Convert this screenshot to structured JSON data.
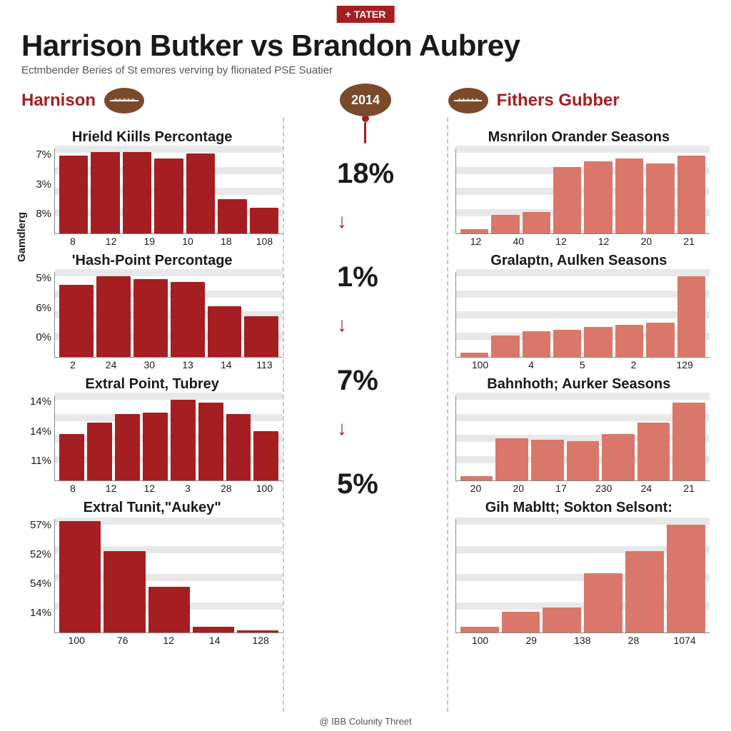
{
  "tag_label": "+ TATER",
  "main_title": "Harrison Butker vs Brandon Aubrey",
  "subtitle": "Ectmbender Beries of St emores verving by flionated PSE Suatier",
  "side_axis_label": "Gamdlerg",
  "footer": "@ IBB Colunity Threet",
  "colors": {
    "brand_red": "#a51e22",
    "left_bar": "#a51e22",
    "right_bar": "#d9776a",
    "grid": "#e8e8e8",
    "text": "#1a1a1a",
    "football": "#7a4a2b"
  },
  "left_player": "Harnison",
  "right_player": "Fithers Gubber",
  "center_year": "2014",
  "center_stats": [
    "18%",
    "1%",
    "7%",
    "5%"
  ],
  "left_charts": [
    {
      "title": "Hrield Kiills Percontage",
      "y_labels": [
        "7%",
        "3%",
        "8%"
      ],
      "x_labels": [
        "8",
        "12",
        "19",
        "10",
        "18",
        "108"
      ],
      "values": [
        92,
        96,
        96,
        88,
        94,
        40,
        30
      ],
      "bar_color": "#a51e22",
      "height_class": ""
    },
    {
      "title": "'Hash-Point Percontage",
      "y_labels": [
        "5%",
        "6%",
        "0%"
      ],
      "x_labels": [
        "2",
        "24",
        "30",
        "13",
        "14",
        "113"
      ],
      "values": [
        85,
        95,
        92,
        88,
        60,
        48
      ],
      "bar_color": "#a51e22",
      "height_class": ""
    },
    {
      "title": "Extral Point, Tubrey",
      "y_labels": [
        "14%",
        "14%",
        "11%"
      ],
      "x_labels": [
        "8",
        "12",
        "12",
        "3",
        "28",
        "100"
      ],
      "values": [
        55,
        68,
        78,
        80,
        95,
        92,
        78,
        58
      ],
      "bar_color": "#a51e22",
      "height_class": ""
    },
    {
      "title": "Extral Tunit,\"Aukey\"",
      "y_labels": [
        "57%",
        "52%",
        "54%",
        "14%"
      ],
      "x_labels": [
        "100",
        "76",
        "12",
        "14",
        "128"
      ],
      "values": [
        98,
        72,
        40,
        5,
        2
      ],
      "bar_color": "#a51e22",
      "height_class": "tall"
    }
  ],
  "right_charts": [
    {
      "title": "Msnrilon Orander Seasons",
      "y_labels": [],
      "x_labels": [
        "12",
        "40",
        "12",
        "12",
        "20",
        "21"
      ],
      "values": [
        5,
        22,
        25,
        78,
        85,
        88,
        82,
        92
      ],
      "bar_color": "#d9776a",
      "height_class": ""
    },
    {
      "title": "Gralaptn, Aulken Seasons",
      "y_labels": [],
      "x_labels": [
        "100",
        "4",
        "5",
        "2",
        "129"
      ],
      "values": [
        5,
        25,
        30,
        32,
        35,
        38,
        40,
        95
      ],
      "bar_color": "#d9776a",
      "height_class": ""
    },
    {
      "title": "Bahnhoth; Aurker Seasons",
      "y_labels": [],
      "x_labels": [
        "20",
        "20",
        "17",
        "230",
        "24",
        "21"
      ],
      "values": [
        5,
        50,
        48,
        46,
        55,
        68,
        92
      ],
      "bar_color": "#d9776a",
      "height_class": ""
    },
    {
      "title": "Gih Mabltt; Sokton Selsont:",
      "y_labels": [],
      "x_labels": [
        "100",
        "29",
        "138",
        "28",
        "1074"
      ],
      "values": [
        5,
        18,
        22,
        52,
        72,
        95
      ],
      "bar_color": "#d9776a",
      "height_class": "tall"
    }
  ]
}
